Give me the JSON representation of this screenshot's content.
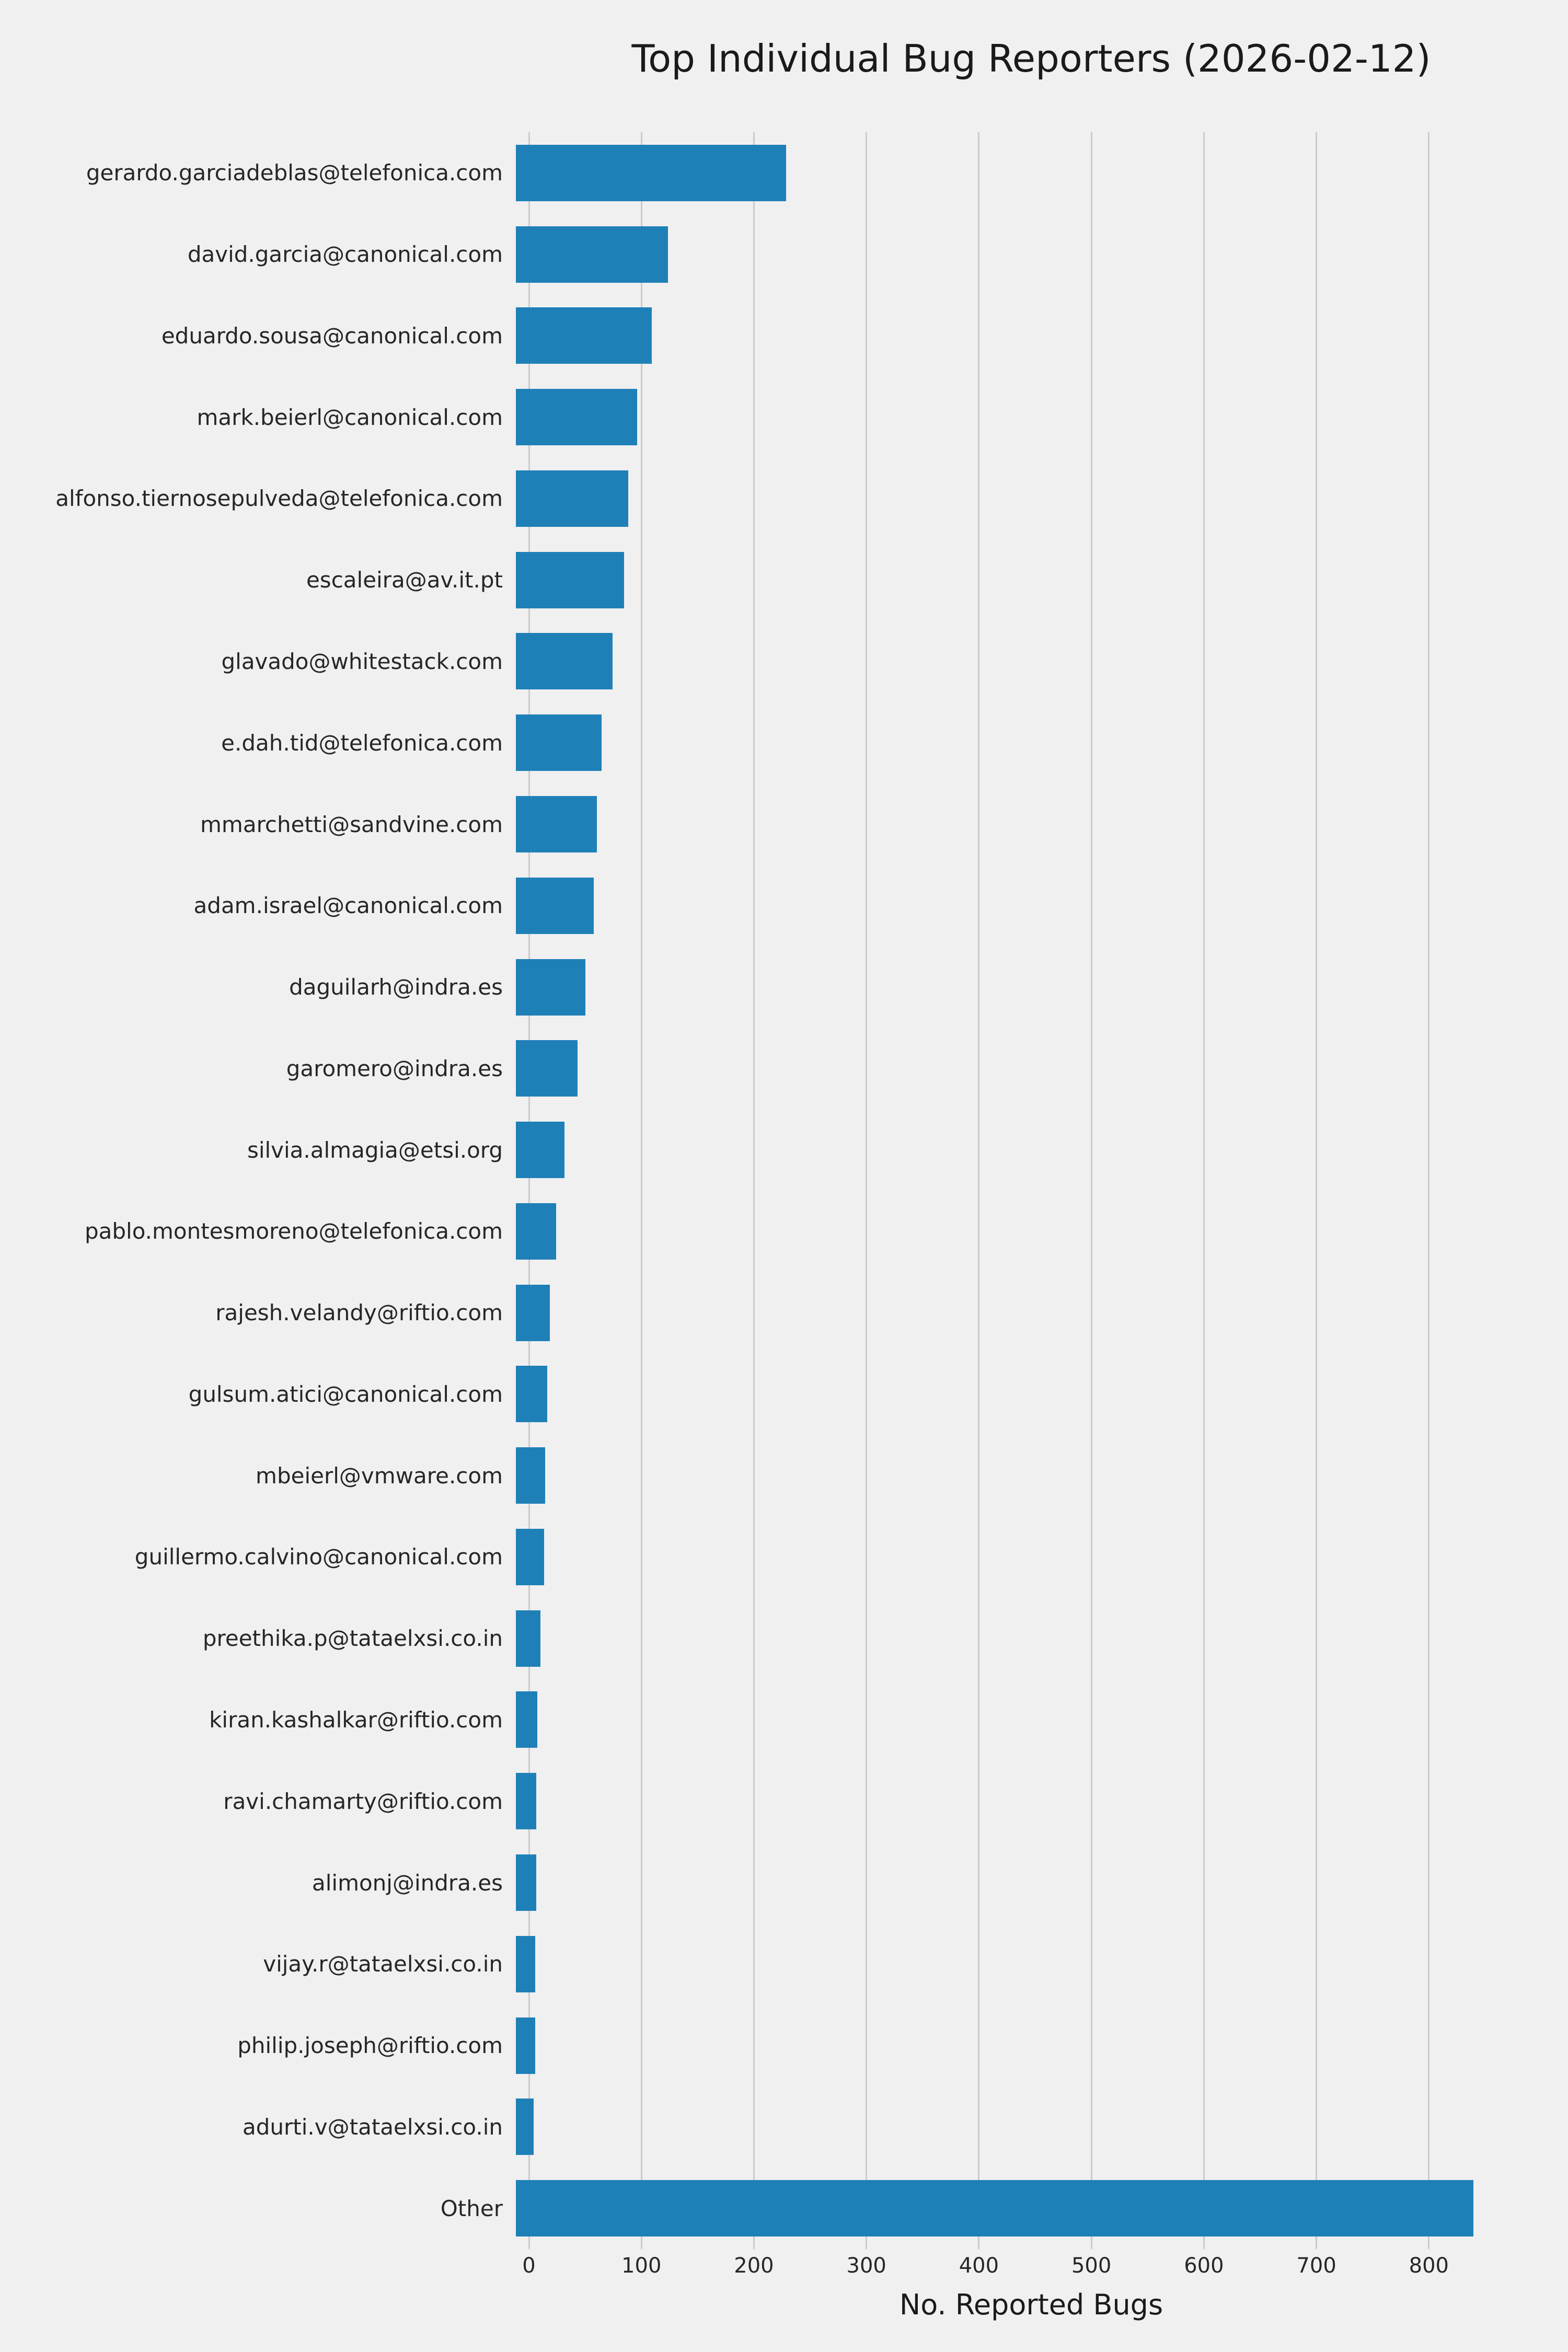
{
  "title": "Top Individual Bug Reporters (2026-02-12)",
  "chart_data": {
    "type": "bar",
    "orientation": "horizontal",
    "title": "Top Individual Bug Reporters (2026-02-12)",
    "xlabel": "No. Reported Bugs",
    "ylabel": "",
    "xlim": [
      0,
      893
    ],
    "xticks": [
      0,
      100,
      200,
      300,
      400,
      500,
      600,
      700,
      800
    ],
    "grid": true,
    "legend": false,
    "bar_color": "#1f80b8",
    "background_color": "#f0f0f0",
    "gridline_color": "#cbcbcb",
    "text_color": "#262626",
    "categories": [
      "gerardo.garciadeblas@telefonica.com",
      "david.garcia@canonical.com",
      "eduardo.sousa@canonical.com",
      "mark.beierl@canonical.com",
      "alfonso.tiernosepulveda@telefonica.com",
      "escaleira@av.it.pt",
      "glavado@whitestack.com",
      "e.dah.tid@telefonica.com",
      "mmarchetti@sandvine.com",
      "adam.israel@canonical.com",
      "daguilarh@indra.es",
      "garomero@indra.es",
      "silvia.almagia@etsi.org",
      "pablo.montesmoreno@telefonica.com",
      "rajesh.velandy@riftio.com",
      "gulsum.atici@canonical.com",
      "mbeierl@vmware.com",
      "guillermo.calvino@canonical.com",
      "preethika.p@tataelxsi.co.in",
      "kiran.kashalkar@riftio.com",
      "ravi.chamarty@riftio.com",
      "alimonj@indra.es",
      "vijay.r@tataelxsi.co.in",
      "philip.joseph@riftio.com",
      "adurti.v@tataelxsi.co.in",
      "Other"
    ],
    "values": [
      240,
      135,
      121,
      108,
      100,
      96,
      86,
      76,
      72,
      69,
      62,
      55,
      43,
      36,
      30,
      28,
      26,
      25,
      22,
      19,
      18,
      18,
      17,
      17,
      16,
      851
    ]
  }
}
